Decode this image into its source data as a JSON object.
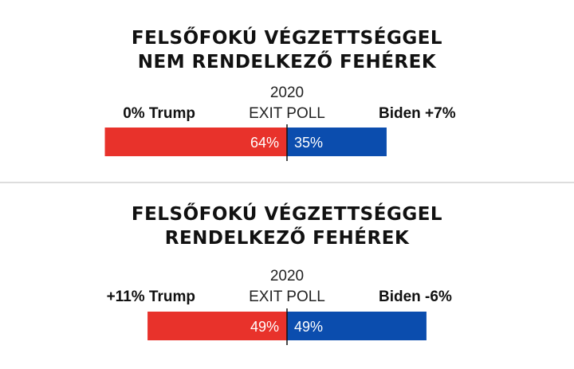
{
  "chart_data": [
    {
      "type": "bar",
      "title_lines": [
        "FELSŐFOKÚ VÉGZETTSÉGGEL",
        "NEM RENDELKEZŐ FEHÉREK"
      ],
      "year": "2020",
      "sublabel": "EXIT POLL",
      "left_label": "0% Trump",
      "right_label": "Biden +7%",
      "series": [
        {
          "name": "Trump",
          "value": 64,
          "label": "64%",
          "color": "#e8322b"
        },
        {
          "name": "Biden",
          "value": 35,
          "label": "35%",
          "color": "#0b4dae"
        }
      ]
    },
    {
      "type": "bar",
      "title_lines": [
        "FELSŐFOKÚ VÉGZETTSÉGGEL",
        "RENDELKEZŐ FEHÉREK"
      ],
      "year": "2020",
      "sublabel": "EXIT POLL",
      "left_label": "+11% Trump",
      "right_label": "Biden -6%",
      "series": [
        {
          "name": "Trump",
          "value": 49,
          "label": "49%",
          "color": "#e8322b"
        },
        {
          "name": "Biden",
          "value": 49,
          "label": "49%",
          "color": "#0b4dae"
        }
      ]
    }
  ],
  "colors": {
    "trump": "#e8322b",
    "biden": "#0b4dae",
    "divider": "#bbbbbb"
  }
}
